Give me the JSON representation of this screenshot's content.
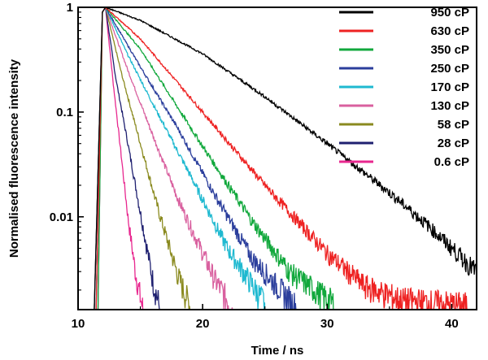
{
  "chart_data": {
    "type": "line",
    "xlabel": "Time / ns",
    "ylabel": "Normalised fluorescence intensity",
    "xlim": [
      10,
      42
    ],
    "ylim": [
      0.0013,
      1.0
    ],
    "yscale": "log",
    "x_ticks": [
      10,
      20,
      30,
      40
    ],
    "x_tick_labels": [
      "10",
      "20",
      "30",
      "40"
    ],
    "y_ticks": [
      0.01,
      0.1,
      1
    ],
    "y_tick_labels": [
      "0.01",
      "0.1",
      "1"
    ],
    "grid": false,
    "legend_position": "top-right",
    "series": [
      {
        "name": "950 cP",
        "color": "#000000",
        "x": [
          12.2,
          15,
          20,
          25,
          30,
          35,
          38,
          42
        ],
        "y": [
          1.0,
          0.75,
          0.36,
          0.14,
          0.05,
          0.017,
          0.0085,
          0.003
        ]
      },
      {
        "name": "630 cP",
        "color": "#ee2222",
        "x": [
          12.2,
          15,
          20,
          25,
          30,
          33,
          36,
          41.5
        ],
        "y": [
          1.0,
          0.5,
          0.1,
          0.02,
          0.0045,
          0.0022,
          0.0016,
          0.0014
        ]
      },
      {
        "name": "350 cP",
        "color": "#11a83c",
        "x": [
          12.2,
          15,
          20,
          24,
          27,
          30.5
        ],
        "y": [
          1.0,
          0.4,
          0.047,
          0.009,
          0.003,
          0.0015
        ]
      },
      {
        "name": "250 cP",
        "color": "#2b3e9c",
        "x": [
          12.2,
          15,
          18,
          21,
          24,
          27.5
        ],
        "y": [
          1.0,
          0.27,
          0.07,
          0.016,
          0.004,
          0.0014
        ]
      },
      {
        "name": "170 cP",
        "color": "#1fb9d0",
        "x": [
          12.2,
          14,
          16,
          19,
          22,
          25
        ],
        "y": [
          1.0,
          0.35,
          0.12,
          0.025,
          0.005,
          0.0015
        ]
      },
      {
        "name": "130 cP",
        "color": "#d9609f",
        "x": [
          12.2,
          14,
          16,
          18,
          21,
          22.5
        ],
        "y": [
          1.0,
          0.25,
          0.06,
          0.015,
          0.0025,
          0.0013
        ]
      },
      {
        "name": "58 cP",
        "color": "#8a8a1f",
        "x": [
          12.2,
          13.5,
          15,
          16.5,
          18,
          19
        ],
        "y": [
          1.0,
          0.23,
          0.05,
          0.011,
          0.0028,
          0.0014
        ]
      },
      {
        "name": "28 cP",
        "color": "#1f2070",
        "x": [
          12.2,
          13,
          14,
          15,
          16,
          16.6
        ],
        "y": [
          1.0,
          0.22,
          0.05,
          0.011,
          0.0025,
          0.0013
        ]
      },
      {
        "name": "0.6 cP",
        "color": "#e8288f",
        "x": [
          12.2,
          12.8,
          13.4,
          14,
          14.6,
          15.2
        ],
        "y": [
          1.0,
          0.2,
          0.045,
          0.01,
          0.003,
          0.0013
        ]
      }
    ]
  }
}
